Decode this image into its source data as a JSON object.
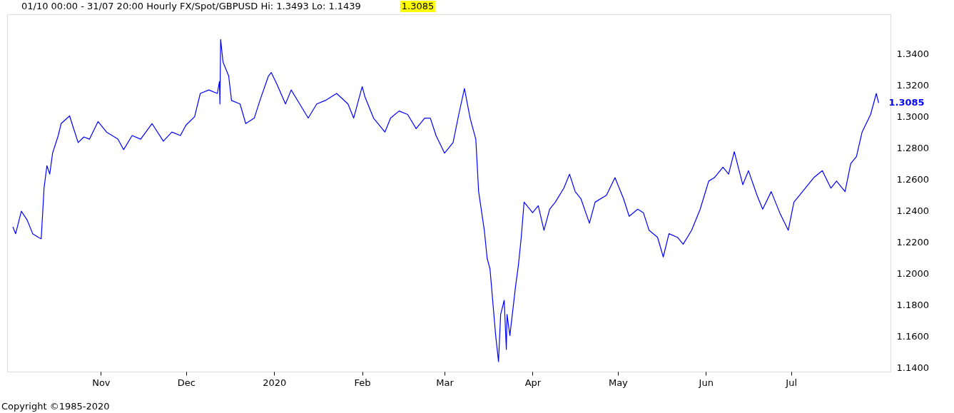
{
  "chart_data": {
    "type": "line",
    "title": "01/10 00:00 - 31/07 20:00   Hourly  FX/Spot/GBPUSD  Hi: 1.3493 Lo: 1.1439",
    "subtitle": "1.3085",
    "annotations": [
      {
        "text": "1.3085",
        "x": "2020-07-31T20:00",
        "y": 1.3085
      },
      "Copyright ©1985-2020"
    ],
    "x": [
      "2019-10-01",
      "2019-10-02",
      "2019-10-04",
      "2019-10-06",
      "2019-10-08",
      "2019-10-10",
      "2019-10-11",
      "2019-10-12",
      "2019-10-13",
      "2019-10-14",
      "2019-10-15",
      "2019-10-17",
      "2019-10-18",
      "2019-10-21",
      "2019-10-22",
      "2019-10-24",
      "2019-10-26",
      "2019-10-28",
      "2019-10-31",
      "2019-11-03",
      "2019-11-07",
      "2019-11-09",
      "2019-11-12",
      "2019-11-15",
      "2019-11-19",
      "2019-11-23",
      "2019-11-26",
      "2019-11-29",
      "2019-12-01",
      "2019-12-04",
      "2019-12-06",
      "2019-12-09",
      "2019-12-12T00:00",
      "2019-12-12T18:00",
      "2019-12-12T22:00",
      "2019-12-13T04:00",
      "2019-12-14",
      "2019-12-16",
      "2019-12-17",
      "2019-12-20",
      "2019-12-22",
      "2019-12-25",
      "2019-12-27",
      "2019-12-30",
      "2019-12-31",
      "2020-01-02",
      "2020-01-05",
      "2020-01-07",
      "2020-01-10",
      "2020-01-13",
      "2020-01-16",
      "2020-01-19",
      "2020-01-23",
      "2020-01-27",
      "2020-01-29",
      "2020-02-01",
      "2020-02-02",
      "2020-02-05",
      "2020-02-09",
      "2020-02-11",
      "2020-02-14",
      "2020-02-17",
      "2020-02-20",
      "2020-02-23",
      "2020-02-25",
      "2020-02-27",
      "2020-03-01",
      "2020-03-04",
      "2020-03-06",
      "2020-03-08",
      "2020-03-10",
      "2020-03-12",
      "2020-03-13",
      "2020-03-15",
      "2020-03-16",
      "2020-03-17",
      "2020-03-19",
      "2020-03-20T00:00",
      "2020-03-20T18:00",
      "2020-03-22T00:00",
      "2020-03-22T18:00",
      "2020-03-23",
      "2020-03-24",
      "2020-03-26",
      "2020-03-27",
      "2020-03-28",
      "2020-03-29",
      "2020-04-01",
      "2020-04-03",
      "2020-04-05",
      "2020-04-07",
      "2020-04-09",
      "2020-04-12",
      "2020-04-14",
      "2020-04-16",
      "2020-04-18",
      "2020-04-21",
      "2020-04-23",
      "2020-04-27",
      "2020-04-30",
      "2020-05-03",
      "2020-05-05",
      "2020-05-08",
      "2020-05-10",
      "2020-05-12",
      "2020-05-15",
      "2020-05-17",
      "2020-05-19",
      "2020-05-22",
      "2020-05-24",
      "2020-05-27",
      "2020-05-30",
      "2020-06-02",
      "2020-06-04",
      "2020-06-07",
      "2020-06-09",
      "2020-06-11",
      "2020-06-14",
      "2020-06-16",
      "2020-06-19",
      "2020-06-21",
      "2020-06-24",
      "2020-06-27",
      "2020-06-30",
      "2020-07-02",
      "2020-07-04",
      "2020-07-09",
      "2020-07-12",
      "2020-07-15",
      "2020-07-17",
      "2020-07-20",
      "2020-07-22",
      "2020-07-24",
      "2020-07-26",
      "2020-07-29",
      "2020-07-31T00:00",
      "2020-07-31T20:00"
    ],
    "series": [
      {
        "color": "#0000ff",
        "values": [
          1.2297,
          1.2253,
          1.2396,
          1.2342,
          1.2253,
          1.223,
          1.2221,
          1.2543,
          1.2686,
          1.2632,
          1.2766,
          1.2878,
          1.2954,
          1.3003,
          1.2945,
          1.2833,
          1.2869,
          1.2855,
          1.2967,
          1.29,
          1.2855,
          1.2788,
          1.2878,
          1.2855,
          1.2954,
          1.2842,
          1.29,
          1.2878,
          1.2945,
          1.2998,
          1.3146,
          1.3168,
          1.3146,
          1.3221,
          1.3079,
          1.349,
          1.3346,
          1.3257,
          1.3101,
          1.3079,
          1.2954,
          1.2989,
          1.3101,
          1.3257,
          1.3279,
          1.3204,
          1.3079,
          1.3168,
          1.3079,
          1.2989,
          1.3079,
          1.3101,
          1.3146,
          1.3079,
          1.2989,
          1.319,
          1.3123,
          1.2989,
          1.29,
          1.2989,
          1.3034,
          1.3012,
          1.2922,
          1.2989,
          1.2989,
          1.2878,
          1.2766,
          1.2833,
          1.3012,
          1.3177,
          1.2989,
          1.2855,
          1.2521,
          1.2275,
          1.2096,
          1.2029,
          1.1605,
          1.1439,
          1.1739,
          1.1829,
          1.1516,
          1.1739,
          1.1605,
          1.1918,
          1.2052,
          1.223,
          1.2454,
          1.2387,
          1.2431,
          1.2275,
          1.2409,
          1.2454,
          1.2543,
          1.2632,
          1.2521,
          1.2476,
          1.232,
          1.2454,
          1.2498,
          1.261,
          1.2476,
          1.2364,
          1.2409,
          1.2387,
          1.2275,
          1.223,
          1.2105,
          1.2253,
          1.223,
          1.2186,
          1.2275,
          1.2409,
          1.2588,
          1.261,
          1.2677,
          1.2632,
          1.2775,
          1.2565,
          1.2654,
          1.2498,
          1.2409,
          1.2521,
          1.2387,
          1.2275,
          1.2454,
          1.2498,
          1.261,
          1.2654,
          1.2543,
          1.2588,
          1.2521,
          1.2699,
          1.2744,
          1.29,
          1.3012,
          1.3146,
          1.3085
        ]
      }
    ],
    "xlim": [
      "2019-09-29",
      "2020-08-05"
    ],
    "xticks": [
      {
        "value": "2019-11-01",
        "label": "Nov"
      },
      {
        "value": "2019-12-01",
        "label": "Dec"
      },
      {
        "value": "2020-01-01",
        "label": "2020"
      },
      {
        "value": "2020-02-01",
        "label": "Feb"
      },
      {
        "value": "2020-03-01",
        "label": "Mar"
      },
      {
        "value": "2020-04-01",
        "label": "Apr"
      },
      {
        "value": "2020-05-01",
        "label": "May"
      },
      {
        "value": "2020-06-01",
        "label": "Jun"
      },
      {
        "value": "2020-07-01",
        "label": "Jul"
      }
    ],
    "ylim": [
      1.1375,
      1.365
    ],
    "yticks": [
      {
        "value": 1.14,
        "label": "1.1400"
      },
      {
        "value": 1.16,
        "label": "1.1600"
      },
      {
        "value": 1.18,
        "label": "1.1800"
      },
      {
        "value": 1.2,
        "label": "1.2000"
      },
      {
        "value": 1.22,
        "label": "1.2200"
      },
      {
        "value": 1.24,
        "label": "1.2400"
      },
      {
        "value": 1.26,
        "label": "1.2600"
      },
      {
        "value": 1.28,
        "label": "1.2800"
      },
      {
        "value": 1.3,
        "label": "1.3000"
      },
      {
        "value": 1.32,
        "label": "1.3200"
      },
      {
        "value": 1.34,
        "label": "1.3400"
      }
    ],
    "grid": false,
    "legend": false,
    "marker": "none",
    "line_style": "solid"
  }
}
